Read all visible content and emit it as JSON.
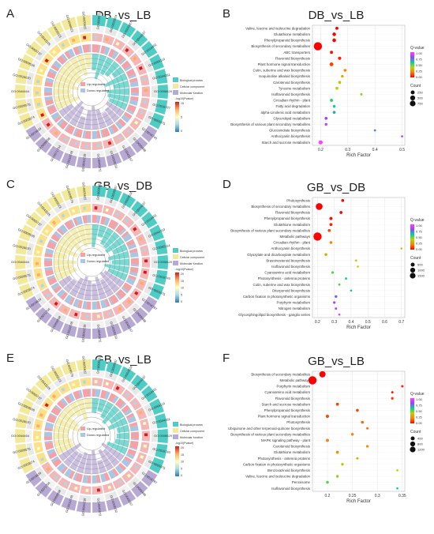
{
  "colors": {
    "mf": "#b8a9d4",
    "cc": "#f2ea9a",
    "bp": "#4ecdc4",
    "up": "#f2a3a8",
    "down": "#a9c7e3",
    "ring2a": "#f4b6b6",
    "ring2b": "#fde08a",
    "qScale": [
      "#ff0000",
      "#ff7f00",
      "#b8d400",
      "#00d0a0",
      "#9a40ff",
      "#ff40ff"
    ],
    "grad": [
      "#d7191c",
      "#fdae61",
      "#ffffbf",
      "#abd9e9",
      "#2c7bb6"
    ]
  },
  "labels": {
    "bp": "Biological process",
    "cc": "Cellular component",
    "mf": "Molecular function",
    "up": "Up-regulated",
    "down": "Down-regulated",
    "logp": "-log10(Pvalue)",
    "qvalue": "Q-value",
    "count": "Count",
    "xlabel": "Rich Factor"
  },
  "chart_data": [
    {
      "type": "circos",
      "panel": "A",
      "title": "DB_vs_LB",
      "grad_ticks": [
        "15",
        "5",
        "0"
      ],
      "terms": [
        "GO:0008152",
        "GO:0003824",
        "GO:0009987",
        "GO:0044237",
        "GO:0016491",
        "GO:0055114",
        "GO:0044281",
        "GO:0006629",
        "GO:0016787",
        "GO:0005975",
        "GO:0016740",
        "GO:0005488",
        "GO:0043167",
        "GO:0008150",
        "GO:0046872",
        "GO:0044238",
        "GO:0019748",
        "GO:0071704",
        "GO:0009058",
        "GO:0016829",
        "GO:0003674",
        "GO:0005575",
        "GO:0044464",
        "GO:0016020",
        "GO:0009536",
        "GO:0005737",
        "GO:0043226",
        "GO:0005623",
        "GO:0044422",
        "GO:0005622"
      ]
    },
    {
      "type": "scatter",
      "panel": "B",
      "title": "DB_vs_LB",
      "xlabel": "Rich Factor",
      "xlim": [
        0.17,
        0.51
      ],
      "xticks": [
        0.2,
        0.3,
        0.4,
        0.5
      ],
      "count_legend": [
        250,
        500,
        750
      ],
      "q_ticks": [
        "1.00",
        "0.75",
        "0.50",
        "0.25",
        "0.00"
      ],
      "categories": [
        "Valine, leucine and isoleucine degradation",
        "Glutathione metabolism",
        "Phenylpropanoid biosynthesis",
        "Biosynthesis of secondary metabolites",
        "ABC transporters",
        "Flavonoid biosynthesis",
        "Plant hormone signal transduction",
        "Cutin, suberine and wax biosynthesis",
        "Isoquinoline alkaloid biosynthesis",
        "Carotenoid biosynthesis",
        "Tyrosine metabolism",
        "Isoflavonoid biosynthesis",
        "Circadian rhythm - plant",
        "Fatty acid degradation",
        "alpha-Linolenic acid metabolism",
        "Glycerolipid metabolism",
        "Biosynthesis of various plant secondary metabolites",
        "Glucosinolate biosynthesis",
        "Anthocyanin biosynthesis",
        "Starch and sucrose metabolism"
      ],
      "rich": [
        0.26,
        0.25,
        0.25,
        0.19,
        0.24,
        0.27,
        0.24,
        0.29,
        0.28,
        0.27,
        0.26,
        0.35,
        0.24,
        0.25,
        0.25,
        0.22,
        0.22,
        0.4,
        0.5,
        0.2
      ],
      "count": [
        40,
        70,
        80,
        800,
        40,
        50,
        90,
        25,
        20,
        30,
        35,
        10,
        45,
        25,
        30,
        30,
        25,
        8,
        5,
        120
      ],
      "q": [
        0.0,
        0.0,
        0.0,
        0.0,
        0.02,
        0.05,
        0.1,
        0.2,
        0.3,
        0.35,
        0.4,
        0.45,
        0.55,
        0.6,
        0.65,
        0.8,
        0.9,
        0.7,
        0.85,
        1.0
      ]
    },
    {
      "type": "circos",
      "panel": "C",
      "title": "GB_vs_DB",
      "grad_ticks": [
        "20",
        "15",
        "10",
        "5",
        "0"
      ],
      "terms": [
        "GO:0008152",
        "GO:0009987",
        "GO:0003824",
        "GO:0044237",
        "GO:0016491",
        "GO:0044710",
        "GO:0055114",
        "GO:0006629",
        "GO:0016740",
        "GO:0005975",
        "GO:0016787",
        "GO:0005488",
        "GO:0043167",
        "GO:0008150",
        "GO:0046872",
        "GO:0044238",
        "GO:0019748",
        "GO:0009058",
        "GO:0071704",
        "GO:0016829",
        "GO:0003674",
        "GO:0005575",
        "GO:0044464",
        "GO:0016020",
        "GO:0009536",
        "GO:0005737",
        "GO:0043226",
        "GO:0005623",
        "GO:0009579",
        "GO:0005622"
      ]
    },
    {
      "type": "scatter",
      "panel": "D",
      "title": "GB_vs_DB",
      "xlabel": "Rich Factor",
      "xlim": [
        0.17,
        0.72
      ],
      "xticks": [
        0.2,
        0.3,
        0.4,
        0.5,
        0.6,
        0.7
      ],
      "count_legend": [
        500,
        1000,
        1500
      ],
      "q_ticks": [
        "1.00",
        "0.75",
        "0.50",
        "0.25",
        "0.00"
      ],
      "categories": [
        "Photosynthesis",
        "Biosynthesis of secondary metabolites",
        "Flavonoid biosynthesis",
        "Phenylpropanoid biosynthesis",
        "Glutathione metabolism",
        "Biosynthesis of various plant secondary metabolites",
        "Metabolic pathways",
        "Circadian rhythm - plant",
        "Anthocyanin biosynthesis",
        "Glyoxylate and dicarboxylate metabolism",
        "Brassinosteroid biosynthesis",
        "Isoflavonoid biosynthesis",
        "Cyanoamino acid metabolism",
        "Photosynthesis - antenna proteins",
        "Cutin, suberine and wax biosynthesis",
        "Diterpenoid biosynthesis",
        "Carbon fixation in photosynthetic organisms",
        "Porphyrin metabolism",
        "Nitrogen metabolism",
        "Glycosphingolipid biosynthesis - ganglio series"
      ],
      "rich": [
        0.35,
        0.21,
        0.34,
        0.28,
        0.28,
        0.27,
        0.2,
        0.28,
        0.7,
        0.25,
        0.43,
        0.44,
        0.29,
        0.37,
        0.33,
        0.4,
        0.31,
        0.3,
        0.31,
        0.33
      ],
      "count": [
        60,
        1000,
        60,
        80,
        70,
        60,
        1600,
        50,
        5,
        50,
        10,
        10,
        40,
        20,
        20,
        10,
        40,
        30,
        25,
        8
      ],
      "q": [
        0.0,
        0.0,
        0.0,
        0.02,
        0.05,
        0.1,
        0.0,
        0.2,
        0.3,
        0.3,
        0.35,
        0.4,
        0.5,
        0.55,
        0.5,
        0.6,
        0.75,
        0.85,
        0.9,
        0.95
      ]
    },
    {
      "type": "circos",
      "panel": "E",
      "title": "GB_vs_LB",
      "grad_ticks": [
        "20",
        "15",
        "10",
        "5",
        "0"
      ],
      "terms": [
        "GO:0008152",
        "GO:0009987",
        "GO:0003824",
        "GO:0044237",
        "GO:0016491",
        "GO:0055114",
        "GO:0044281",
        "GO:0006629",
        "GO:0016740",
        "GO:0005975",
        "GO:0016787",
        "GO:0005488",
        "GO:0043167",
        "GO:0008150",
        "GO:0046872",
        "GO:0044238",
        "GO:0019748",
        "GO:0009058",
        "GO:0071704",
        "GO:0016829",
        "GO:0003674",
        "GO:0005575",
        "GO:0044464",
        "GO:0016020",
        "GO:0009536",
        "GO:0005737",
        "GO:0043226",
        "GO:0005623",
        "GO:0009579",
        "GO:0005622"
      ]
    },
    {
      "type": "scatter",
      "panel": "F",
      "title": "GB_vs_LB",
      "xlabel": "Rich Factor",
      "xlim": [
        0.17,
        0.355
      ],
      "xticks": [
        0.2,
        0.25,
        0.3,
        0.35
      ],
      "count_legend": [
        400,
        800,
        1200
      ],
      "q_ticks": [
        "1.00",
        "0.75",
        "0.50",
        "0.25",
        "0.00"
      ],
      "categories": [
        "Biosynthesis of secondary metabolites",
        "Metabolic pathways",
        "Porphyrin metabolism",
        "Cyanoamino acid metabolism",
        "Flavonoid biosynthesis",
        "Starch and sucrose metabolism",
        "Phenylpropanoid biosynthesis",
        "Plant hormone signal transduction",
        "Photosynthesis",
        "Ubiquinone and other terpenoid-quinone biosynthesis",
        "Biosynthesis of various plant secondary metabolites",
        "MAPK signaling pathway - plant",
        "Carotenoid biosynthesis",
        "Glutathione metabolism",
        "Photosynthesis - antenna proteins",
        "Carbon fixation in photosynthetic organisms",
        "Benzoxazinoid biosynthesis",
        "Valine, leucine and isoleucine degradation",
        "Peroxisome",
        "Isoflavonoid biosynthesis"
      ],
      "rich": [
        0.19,
        0.17,
        0.35,
        0.33,
        0.33,
        0.22,
        0.26,
        0.2,
        0.27,
        0.28,
        0.25,
        0.2,
        0.28,
        0.22,
        0.26,
        0.23,
        0.34,
        0.22,
        0.2,
        0.34
      ],
      "count": [
        700,
        1400,
        20,
        20,
        30,
        60,
        50,
        90,
        40,
        20,
        40,
        70,
        35,
        60,
        20,
        35,
        10,
        40,
        50,
        8
      ],
      "q": [
        0.0,
        0.0,
        0.05,
        0.05,
        0.08,
        0.1,
        0.1,
        0.12,
        0.15,
        0.18,
        0.2,
        0.2,
        0.22,
        0.25,
        0.3,
        0.35,
        0.4,
        0.45,
        0.5,
        0.6
      ]
    }
  ]
}
